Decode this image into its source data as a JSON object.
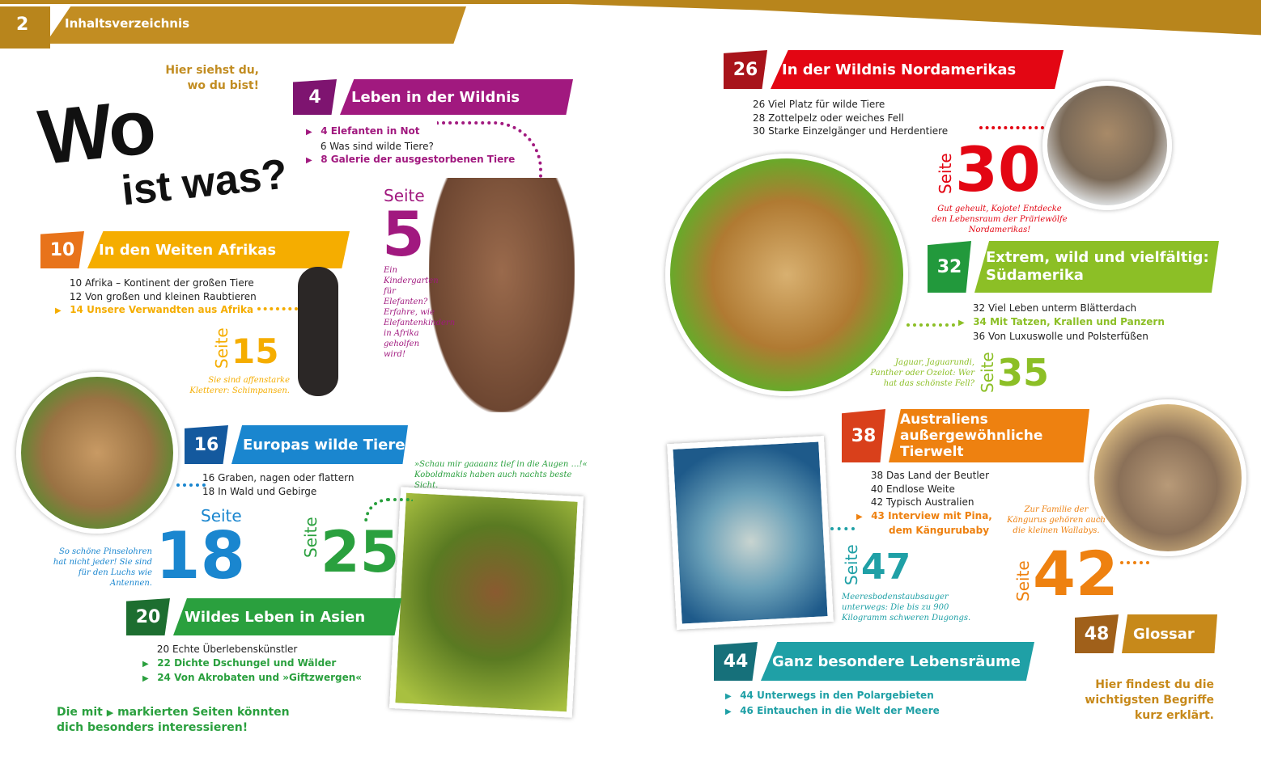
{
  "header": {
    "page_number": "2",
    "title": "Inhaltsverzeichnis"
  },
  "intro": {
    "hint": "Hier siehst du, wo du bist!",
    "title_line1": "Wo",
    "title_line2": "ist was?"
  },
  "sections": [
    {
      "num": "4",
      "title": "Leben in der Wildnis",
      "color": "#a1197f",
      "num_color": "#7e1470",
      "items": [
        {
          "page": "4",
          "label": "Elefanten in Not",
          "marked": true
        },
        {
          "page": "6",
          "label": "Was sind wilde Tiere?",
          "marked": false
        },
        {
          "page": "8",
          "label": "Galerie der ausgestorbenen Tiere",
          "marked": true
        }
      ]
    },
    {
      "num": "10",
      "title": "In den Weiten Afrikas",
      "color": "#f5ad00",
      "num_color": "#e8731a",
      "items": [
        {
          "page": "10",
          "label": "Afrika – Kontinent der großen Tiere",
          "marked": false
        },
        {
          "page": "12",
          "label": "Von großen und kleinen Raubtieren",
          "marked": false
        },
        {
          "page": "14",
          "label": "Unsere Verwandten aus Afrika",
          "marked": true
        }
      ]
    },
    {
      "num": "16",
      "title": "Europas wilde Tiere",
      "color": "#1a86cf",
      "num_color": "#14599e",
      "items": [
        {
          "page": "16",
          "label": "Graben, nagen oder flattern",
          "marked": false
        },
        {
          "page": "18",
          "label": "In Wald und Gebirge",
          "marked": false
        }
      ]
    },
    {
      "num": "20",
      "title": "Wildes Leben in Asien",
      "color": "#2aa03e",
      "num_color": "#1d6e30",
      "items": [
        {
          "page": "20",
          "label": "Echte Überlebenskünstler",
          "marked": false
        },
        {
          "page": "22",
          "label": "Dichte Dschungel und Wälder",
          "marked": true
        },
        {
          "page": "24",
          "label": "Von Akrobaten und »Giftzwergen«",
          "marked": true
        }
      ]
    },
    {
      "num": "26",
      "title": "In der Wildnis Nordamerikas",
      "color": "#e30613",
      "num_color": "#a8141b",
      "items": [
        {
          "page": "26",
          "label": "Viel Platz für wilde Tiere",
          "marked": false
        },
        {
          "page": "28",
          "label": "Zottelpelz oder weiches Fell",
          "marked": false
        },
        {
          "page": "30",
          "label": "Starke Einzelgänger und Herdentiere",
          "marked": false
        }
      ]
    },
    {
      "num": "32",
      "title": "Extrem, wild und vielfältig: Südamerika",
      "color": "#8cbf26",
      "num_color": "#22993c",
      "items": [
        {
          "page": "32",
          "label": "Viel Leben unterm Blätterdach",
          "marked": false
        },
        {
          "page": "34",
          "label": "Mit Tatzen, Krallen und Panzern",
          "marked": true
        },
        {
          "page": "36",
          "label": "Von Luxuswolle und Polsterfüßen",
          "marked": false
        }
      ]
    },
    {
      "num": "38",
      "title": "Australiens außergewöhnliche Tierwelt",
      "color": "#ee8110",
      "num_color": "#d9401b",
      "items": [
        {
          "page": "38",
          "label": "Das Land der Beutler",
          "marked": false
        },
        {
          "page": "40",
          "label": "Endlose Weite",
          "marked": false
        },
        {
          "page": "42",
          "label": "Typisch Australien",
          "marked": false
        },
        {
          "page": "43",
          "label": "Interview mit Pina, dem Kängurubaby",
          "marked": true
        }
      ]
    },
    {
      "num": "44",
      "title": "Ganz besondere Lebensräume",
      "color": "#1fa0a6",
      "num_color": "#16707a",
      "items": [
        {
          "page": "44",
          "label": "Unterwegs in den Polargebieten",
          "marked": true
        },
        {
          "page": "46",
          "label": "Eintauchen in die Welt der Meere",
          "marked": true
        }
      ]
    },
    {
      "num": "48",
      "title": "Glossar",
      "color": "#c7891a",
      "num_color": "#a0601a",
      "items": []
    }
  ],
  "callouts": [
    {
      "seite": "Seite",
      "page": "5",
      "caption": "Ein Kindergarten für Elefanten? Erfahre, wie Elefantenkindern in Afrika geholfen wird!",
      "color": "#a1197f"
    },
    {
      "seite": "Seite",
      "page": "15",
      "caption": "Sie sind affenstarke Kletterer: Schimpansen.",
      "color": "#f5ad00"
    },
    {
      "seite": "Seite",
      "page": "18",
      "caption": "So schöne Pinselohren hat nicht jeder! Sie sind für den Luchs wie Antennen.",
      "color": "#1a86cf"
    },
    {
      "seite": "Seite",
      "page": "25",
      "caption": "»Schau mir gaaaanz tief in die Augen …!« Koboldmakis haben auch nachts beste Sicht.",
      "color": "#2aa03e"
    },
    {
      "seite": "Seite",
      "page": "30",
      "caption": "Gut geheult, Kojote! Entdecke den Lebensraum der Präriewölfe Nordamerikas!",
      "color": "#e30613"
    },
    {
      "seite": "Seite",
      "page": "35",
      "caption": "Jaguar, Jaguarundi, Panther oder Ozelot: Wer hat das schönste Fell?",
      "color": "#8cbf26"
    },
    {
      "seite": "Seite",
      "page": "42",
      "caption": "Zur Familie der Kängurus gehören auch die kleinen Wallabys.",
      "color": "#ee8110"
    },
    {
      "seite": "Seite",
      "page": "47",
      "caption": "Meeresbodenstaubsauger unterwegs: Die bis zu 900 Kilogramm schweren Dugongs.",
      "color": "#1fa0a6"
    }
  ],
  "notes": {
    "marked_pre": "Die mit",
    "marked_arrow": "▶",
    "marked_post": "markierten Seiten könnten dich besonders interessieren!",
    "glossar": "Hier findest du die wichtigsten Begriffe kurz erklärt."
  },
  "photos": [
    "elephant",
    "chimpanzee",
    "lynx",
    "tarsier",
    "coyote",
    "jaguar",
    "wallaby",
    "dugong"
  ]
}
